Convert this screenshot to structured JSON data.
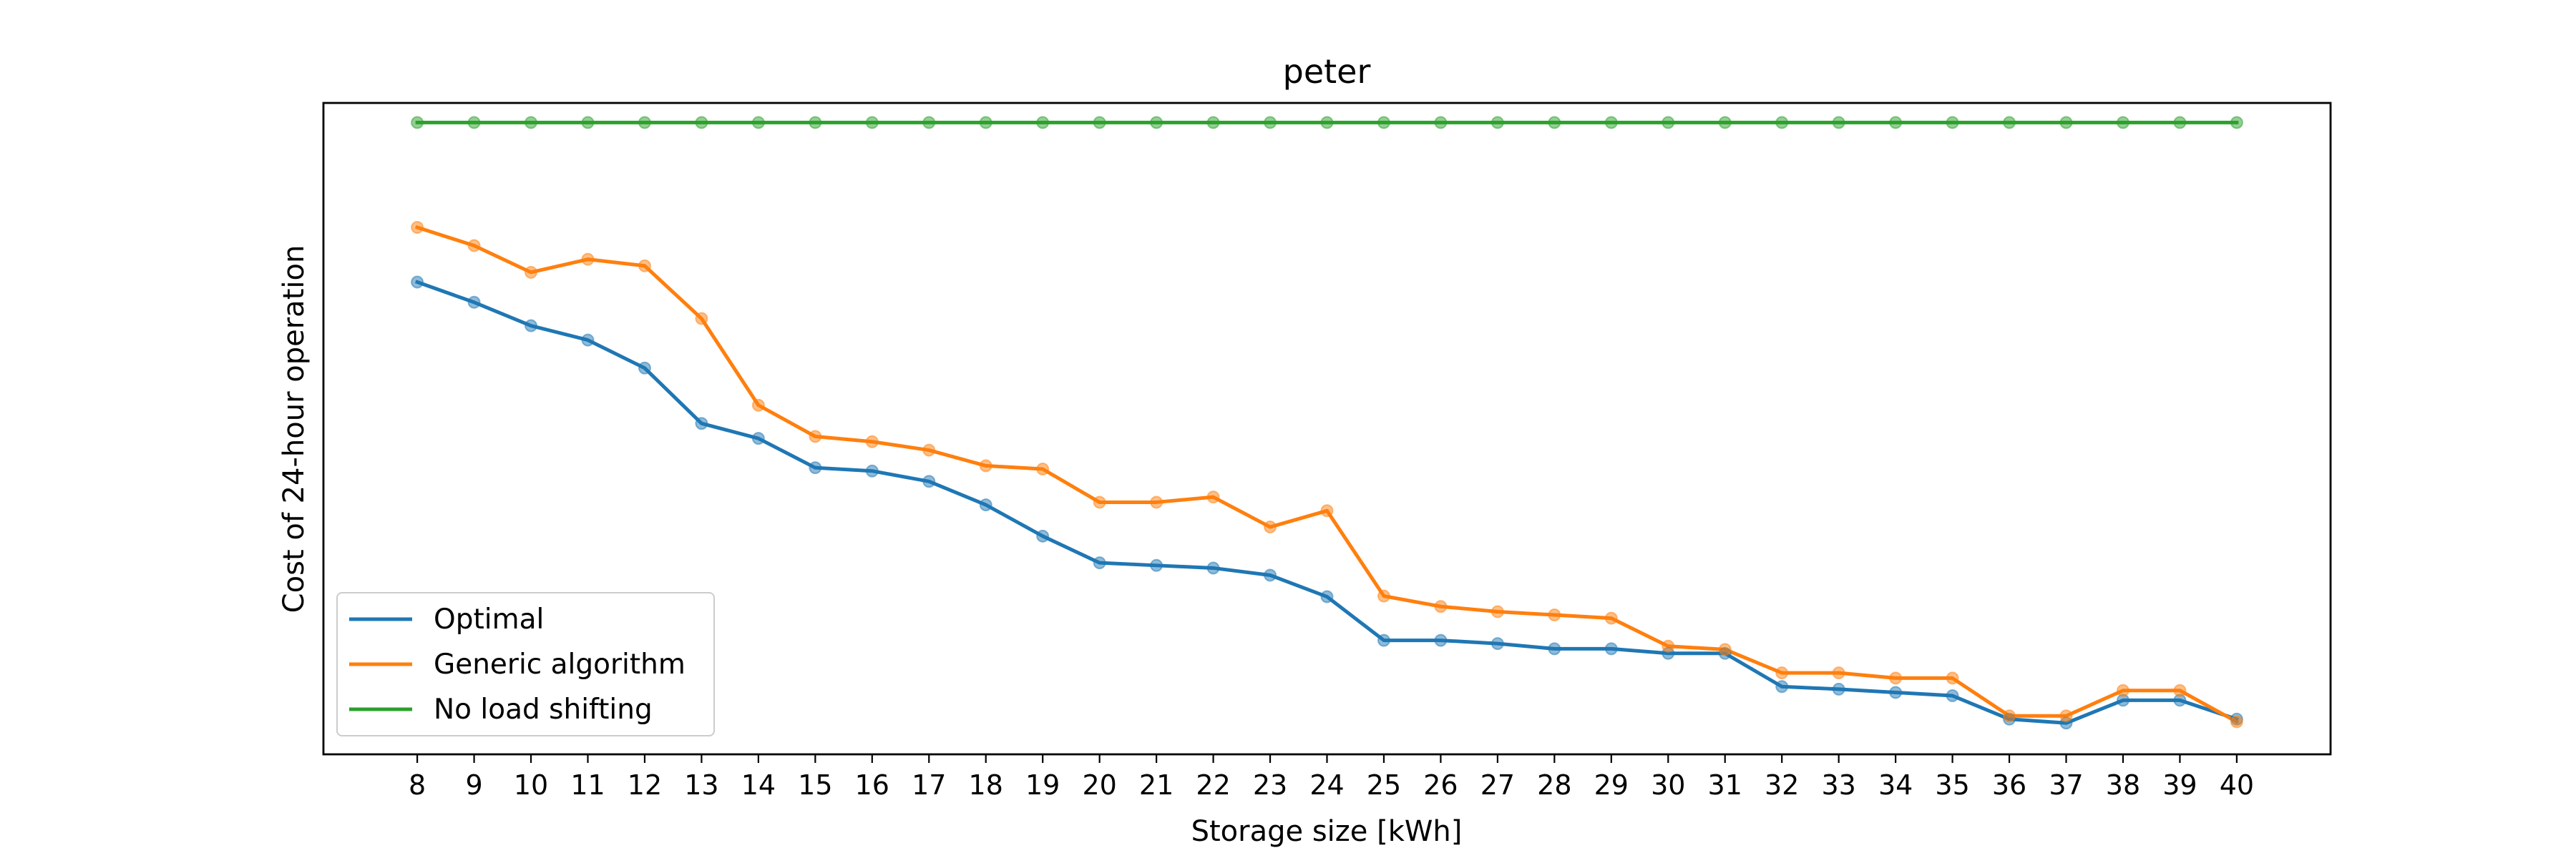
{
  "chart_data": {
    "type": "line",
    "title": "peter",
    "xlabel": "Storage size [kWh]",
    "ylabel": "Cost of 24-hour operation",
    "x": [
      8,
      9,
      10,
      11,
      12,
      13,
      14,
      15,
      16,
      17,
      18,
      19,
      20,
      21,
      22,
      23,
      24,
      25,
      26,
      27,
      28,
      29,
      30,
      31,
      32,
      33,
      34,
      35,
      36,
      37,
      38,
      39,
      40
    ],
    "xlim": [
      6.35,
      41.65
    ],
    "ylim": [
      0,
      100
    ],
    "y_tick_labels_shown": false,
    "grid": false,
    "legend_position": "lower-left",
    "series": [
      {
        "name": "Optimal",
        "color": "#1f77b4",
        "values": [
          72.5,
          69.4,
          65.8,
          63.6,
          59.3,
          50.8,
          48.5,
          44.0,
          43.5,
          41.9,
          38.3,
          33.5,
          29.4,
          29.0,
          28.6,
          27.5,
          24.2,
          17.5,
          17.5,
          17.0,
          16.2,
          16.2,
          15.5,
          15.5,
          10.4,
          10.0,
          9.5,
          9.0,
          5.4,
          4.8,
          8.3,
          8.3,
          5.4
        ]
      },
      {
        "name": "Generic algorithm",
        "color": "#ff7f0e",
        "values": [
          80.9,
          78.1,
          74.0,
          76.0,
          75.0,
          66.9,
          53.6,
          48.8,
          48.0,
          46.7,
          44.3,
          43.8,
          38.7,
          38.7,
          39.5,
          34.9,
          37.4,
          24.3,
          22.7,
          21.9,
          21.4,
          20.9,
          16.6,
          16.1,
          12.5,
          12.5,
          11.7,
          11.7,
          5.9,
          5.9,
          9.8,
          9.8,
          5.0
        ]
      },
      {
        "name": "No load shifting",
        "color": "#2ca02c",
        "values": [
          97.0,
          97.0,
          97.0,
          97.0,
          97.0,
          97.0,
          97.0,
          97.0,
          97.0,
          97.0,
          97.0,
          97.0,
          97.0,
          97.0,
          97.0,
          97.0,
          97.0,
          97.0,
          97.0,
          97.0,
          97.0,
          97.0,
          97.0,
          97.0,
          97.0,
          97.0,
          97.0,
          97.0,
          97.0,
          97.0,
          97.0,
          97.0,
          97.0
        ]
      }
    ]
  }
}
